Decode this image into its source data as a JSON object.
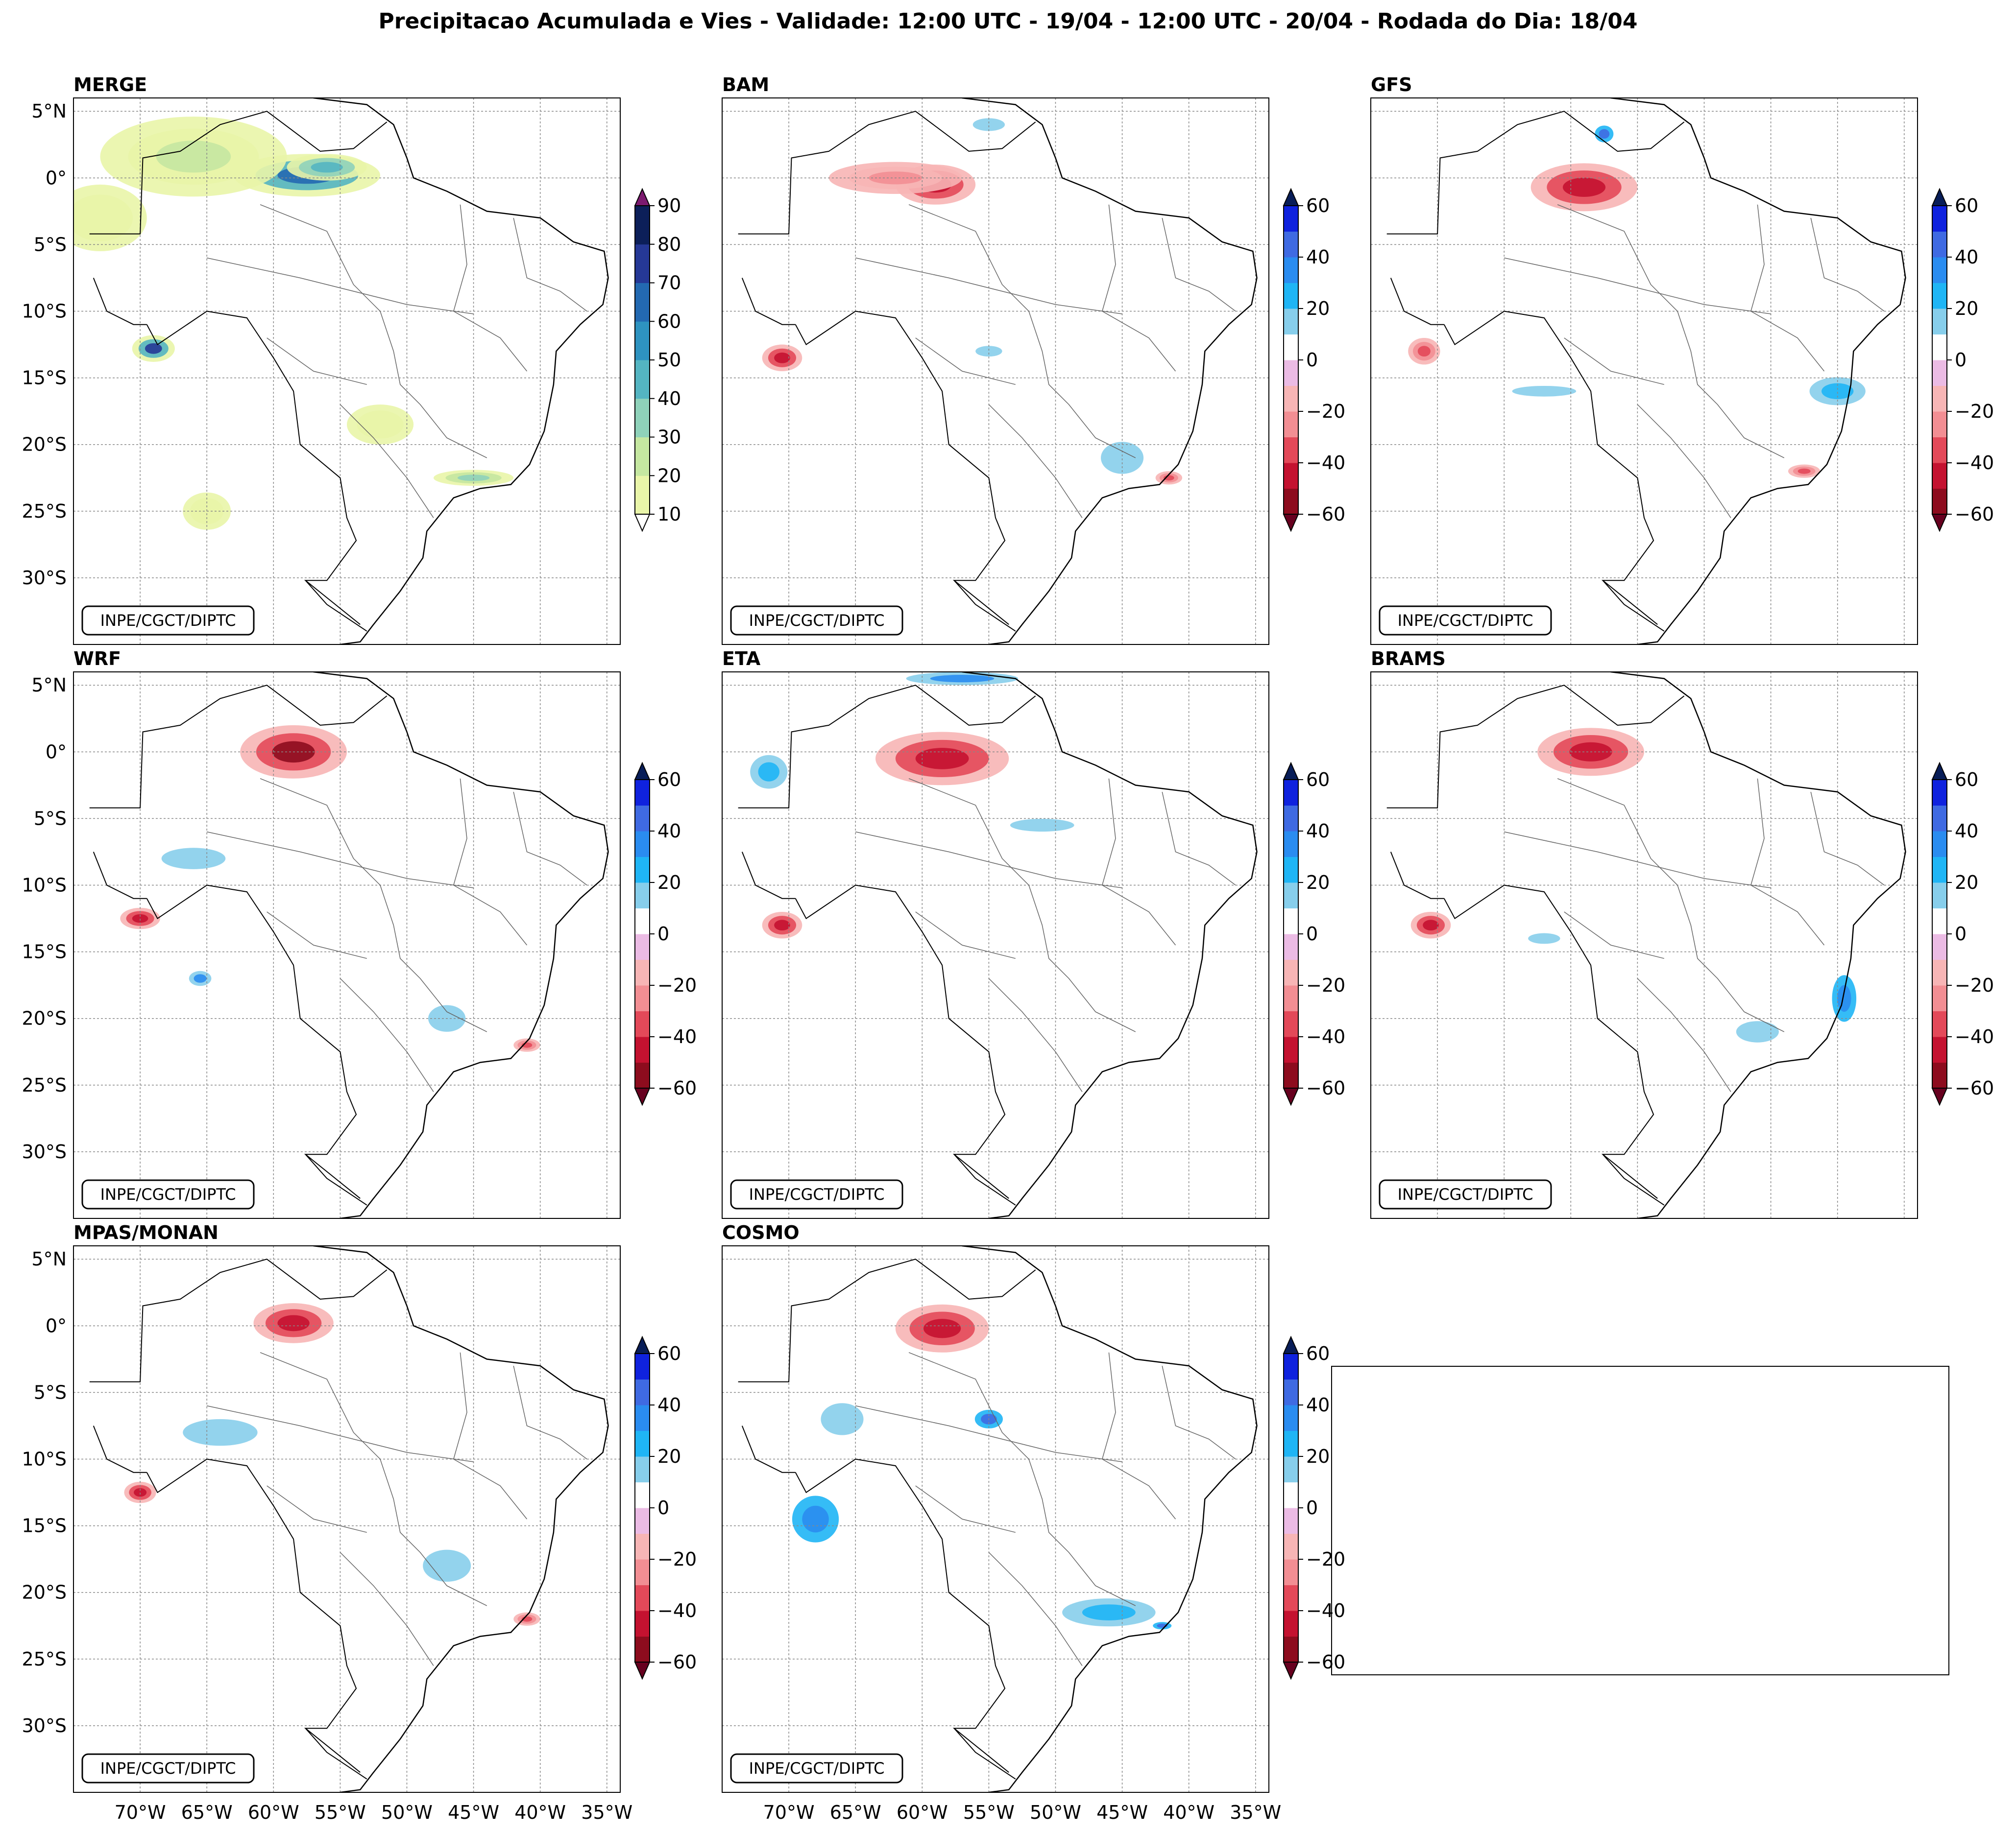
{
  "title": "Precipitacao Acumulada e Vies - Validade: 12:00 UTC - 19/04 - 12:00 UTC - 20/04 - Rodada do Dia: 18/04",
  "credit": "INPE/CGCT/DIPTC",
  "lat_labels": [
    "5°N",
    "0°",
    "5°S",
    "10°S",
    "15°S",
    "20°S",
    "25°S",
    "30°S"
  ],
  "lon_labels": [
    "70°W",
    "65°W",
    "60°W",
    "55°W",
    "50°W",
    "45°W",
    "40°W",
    "35°W"
  ],
  "panels": [
    {
      "name": "MERGE",
      "colorbar": "merge"
    },
    {
      "name": "BAM",
      "colorbar": "bias"
    },
    {
      "name": "GFS",
      "colorbar": "bias"
    },
    {
      "name": "WRF",
      "colorbar": "bias"
    },
    {
      "name": "ETA",
      "colorbar": "bias"
    },
    {
      "name": "BRAMS",
      "colorbar": "bias"
    },
    {
      "name": "MPAS/MONAN",
      "colorbar": "bias"
    },
    {
      "name": "COSMO",
      "colorbar": "bias"
    }
  ],
  "chart_data": {
    "type": "heatmap",
    "title": "Precipitacao Acumulada e Vies - Validade: 12:00 UTC - 19/04 - 12:00 UTC - 20/04 - Rodada do Dia: 18/04",
    "lat_range": [
      -35,
      6
    ],
    "lon_range": [
      -75,
      -34
    ],
    "colorbars": {
      "merge": {
        "ticks": [
          "90",
          "80",
          "70",
          "60",
          "50",
          "40",
          "30",
          "20",
          "10"
        ],
        "levels": [
          10,
          20,
          30,
          40,
          50,
          60,
          70,
          80,
          90
        ],
        "colors": [
          "#e9f5a9",
          "#c5e7a1",
          "#8fd2ba",
          "#54b5c2",
          "#2e93c0",
          "#2369b1",
          "#253896",
          "#0c1f59"
        ],
        "extend_colors": [
          "#7c1a6f",
          "#ffffff"
        ]
      },
      "bias": {
        "ticks": [
          "60",
          "40",
          "20",
          "0",
          "−20",
          "−40",
          "−60"
        ],
        "levels": [
          -60,
          -50,
          -40,
          -30,
          -20,
          -10,
          10,
          20,
          30,
          40,
          50,
          60
        ],
        "colors": [
          "#8d0c1e",
          "#c41230",
          "#e34959",
          "#f28e93",
          "#f7b5b5",
          "#ebbbe4",
          "#ffffff",
          "#87ceeb",
          "#1fb5f5",
          "#2a8cf0",
          "#3f6ae2",
          "#0f22de"
        ],
        "extend_colors": [
          "#081d58",
          "#67001f"
        ]
      }
    },
    "features": {
      "MERGE": [
        {
          "lon": -57.5,
          "lat": 0.2,
          "value": 60,
          "rx": 5.5,
          "ry": 1.6
        },
        {
          "lon": -66.0,
          "lat": 1.6,
          "value": 25,
          "rx": 7.0,
          "ry": 3.0
        },
        {
          "lon": -56.0,
          "lat": 0.8,
          "value": 45,
          "rx": 3.0,
          "ry": 1.0
        },
        {
          "lon": -69.0,
          "lat": -12.8,
          "value": 70,
          "rx": 1.6,
          "ry": 1.0
        },
        {
          "lon": -52.0,
          "lat": -18.5,
          "value": 15,
          "rx": 2.5,
          "ry": 1.5
        },
        {
          "lon": -65.0,
          "lat": -25.0,
          "value": 15,
          "rx": 1.8,
          "ry": 1.4
        },
        {
          "lon": -45.0,
          "lat": -22.5,
          "value": 35,
          "rx": 3.0,
          "ry": 0.6
        },
        {
          "lon": -73.0,
          "lat": -3.0,
          "value": 15,
          "rx": 3.5,
          "ry": 2.5
        }
      ],
      "BAM": [
        {
          "lon": -59.0,
          "lat": -0.5,
          "value": -50,
          "rx": 3.0,
          "ry": 1.5
        },
        {
          "lon": -62.0,
          "lat": 0.0,
          "value": -25,
          "rx": 5.0,
          "ry": 1.2
        },
        {
          "lon": -70.5,
          "lat": -13.5,
          "value": -50,
          "rx": 1.5,
          "ry": 1.0
        },
        {
          "lon": -55.0,
          "lat": 4.0,
          "value": 20,
          "rx": 3.0,
          "ry": 1.2
        },
        {
          "lon": -45.0,
          "lat": -21.0,
          "value": 20,
          "rx": 4.0,
          "ry": 3.0
        },
        {
          "lon": -55.0,
          "lat": -13.0,
          "value": 20,
          "rx": 2.5,
          "ry": 1.0
        },
        {
          "lon": -41.5,
          "lat": -22.5,
          "value": -40,
          "rx": 1.0,
          "ry": 0.5
        }
      ],
      "GFS": [
        {
          "lon": -59.0,
          "lat": -0.7,
          "value": -45,
          "rx": 4.0,
          "ry": 1.8
        },
        {
          "lon": -57.5,
          "lat": 3.3,
          "value": 55,
          "rx": 1.0,
          "ry": 0.9
        },
        {
          "lon": -40.0,
          "lat": -16.0,
          "value": 30,
          "rx": 3.0,
          "ry": 1.5
        },
        {
          "lon": -62.0,
          "lat": -16.0,
          "value": 20,
          "rx": 6.0,
          "ry": 1.0
        },
        {
          "lon": -71.0,
          "lat": -13.0,
          "value": -40,
          "rx": 1.2,
          "ry": 1.0
        },
        {
          "lon": -42.5,
          "lat": -22.0,
          "value": -40,
          "rx": 1.2,
          "ry": 0.5
        }
      ],
      "WRF": [
        {
          "lon": -58.5,
          "lat": 0.0,
          "value": -55,
          "rx": 4.0,
          "ry": 2.0
        },
        {
          "lon": -66.0,
          "lat": -8.0,
          "value": 20,
          "rx": 6.0,
          "ry": 2.0
        },
        {
          "lon": -70.0,
          "lat": -12.5,
          "value": -45,
          "rx": 1.5,
          "ry": 0.8
        },
        {
          "lon": -65.5,
          "lat": -17.0,
          "value": 40,
          "rx": 1.2,
          "ry": 0.8
        },
        {
          "lon": -47.0,
          "lat": -20.0,
          "value": 25,
          "rx": 3.5,
          "ry": 2.5
        },
        {
          "lon": -41.0,
          "lat": -22.0,
          "value": -40,
          "rx": 1.0,
          "ry": 0.5
        }
      ],
      "ETA": [
        {
          "lon": -58.5,
          "lat": -0.5,
          "value": -50,
          "rx": 5.0,
          "ry": 2.0
        },
        {
          "lon": -71.5,
          "lat": -1.5,
          "value": 35,
          "rx": 2.0,
          "ry": 1.8
        },
        {
          "lon": -51.0,
          "lat": -5.5,
          "value": 25,
          "rx": 6.0,
          "ry": 1.2
        },
        {
          "lon": -70.5,
          "lat": -13.0,
          "value": -50,
          "rx": 1.5,
          "ry": 1.0
        },
        {
          "lon": -57.0,
          "lat": 5.5,
          "value": 40,
          "rx": 6.0,
          "ry": 0.7
        }
      ],
      "BRAMS": [
        {
          "lon": -58.5,
          "lat": 0.0,
          "value": -45,
          "rx": 4.0,
          "ry": 1.8
        },
        {
          "lon": -39.5,
          "lat": -18.5,
          "value": 45,
          "rx": 1.3,
          "ry": 2.5
        },
        {
          "lon": -46.0,
          "lat": -21.0,
          "value": 20,
          "rx": 4.0,
          "ry": 2.0
        },
        {
          "lon": -70.5,
          "lat": -13.0,
          "value": -50,
          "rx": 1.5,
          "ry": 1.0
        },
        {
          "lon": -62.0,
          "lat": -14.0,
          "value": 20,
          "rx": 3.0,
          "ry": 1.0
        }
      ],
      "MPAS/MONAN": [
        {
          "lon": -58.5,
          "lat": 0.2,
          "value": -50,
          "rx": 3.0,
          "ry": 1.5
        },
        {
          "lon": -64.0,
          "lat": -8.0,
          "value": 25,
          "rx": 7.0,
          "ry": 2.5
        },
        {
          "lon": -47.0,
          "lat": -18.0,
          "value": 20,
          "rx": 4.5,
          "ry": 3.0
        },
        {
          "lon": -70.0,
          "lat": -12.5,
          "value": -45,
          "rx": 1.2,
          "ry": 0.8
        },
        {
          "lon": -41.0,
          "lat": -22.0,
          "value": -40,
          "rx": 1.0,
          "ry": 0.5
        }
      ],
      "COSMO": [
        {
          "lon": -58.5,
          "lat": -0.2,
          "value": -50,
          "rx": 3.5,
          "ry": 1.8
        },
        {
          "lon": -68.0,
          "lat": -14.5,
          "value": 45,
          "rx": 2.5,
          "ry": 2.5
        },
        {
          "lon": -55.0,
          "lat": -7.0,
          "value": 50,
          "rx": 1.5,
          "ry": 1.0
        },
        {
          "lon": -46.0,
          "lat": -21.5,
          "value": 30,
          "rx": 5.0,
          "ry": 1.5
        },
        {
          "lon": -42.0,
          "lat": -22.5,
          "value": 55,
          "rx": 1.0,
          "ry": 0.4
        },
        {
          "lon": -66.0,
          "lat": -7.0,
          "value": 20,
          "rx": 4.0,
          "ry": 3.0
        }
      ]
    }
  }
}
